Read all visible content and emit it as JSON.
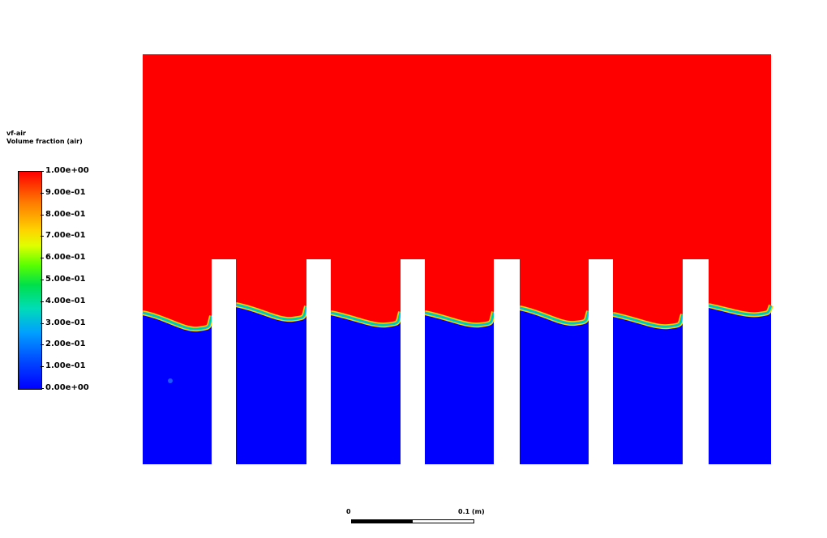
{
  "legend": {
    "title_line1": "vf-air",
    "title_line2": "Volume fraction (air)",
    "ticks": [
      "1.00e+00",
      "9.00e-01",
      "8.00e-01",
      "7.00e-01",
      "6.00e-01",
      "5.00e-01",
      "4.00e-01",
      "3.00e-01",
      "2.00e-01",
      "1.00e-01",
      "0.00e+00"
    ]
  },
  "scale": {
    "left_label": "0",
    "right_label": "0.1 (m)"
  },
  "colors": {
    "air": "#ff0000",
    "water": "#0000ff",
    "obstacle": "#ffffff"
  },
  "field": {
    "obstacle_count": 6,
    "interface_band_colors": [
      "#ffd400",
      "#00e070",
      "#00b8ff"
    ]
  }
}
